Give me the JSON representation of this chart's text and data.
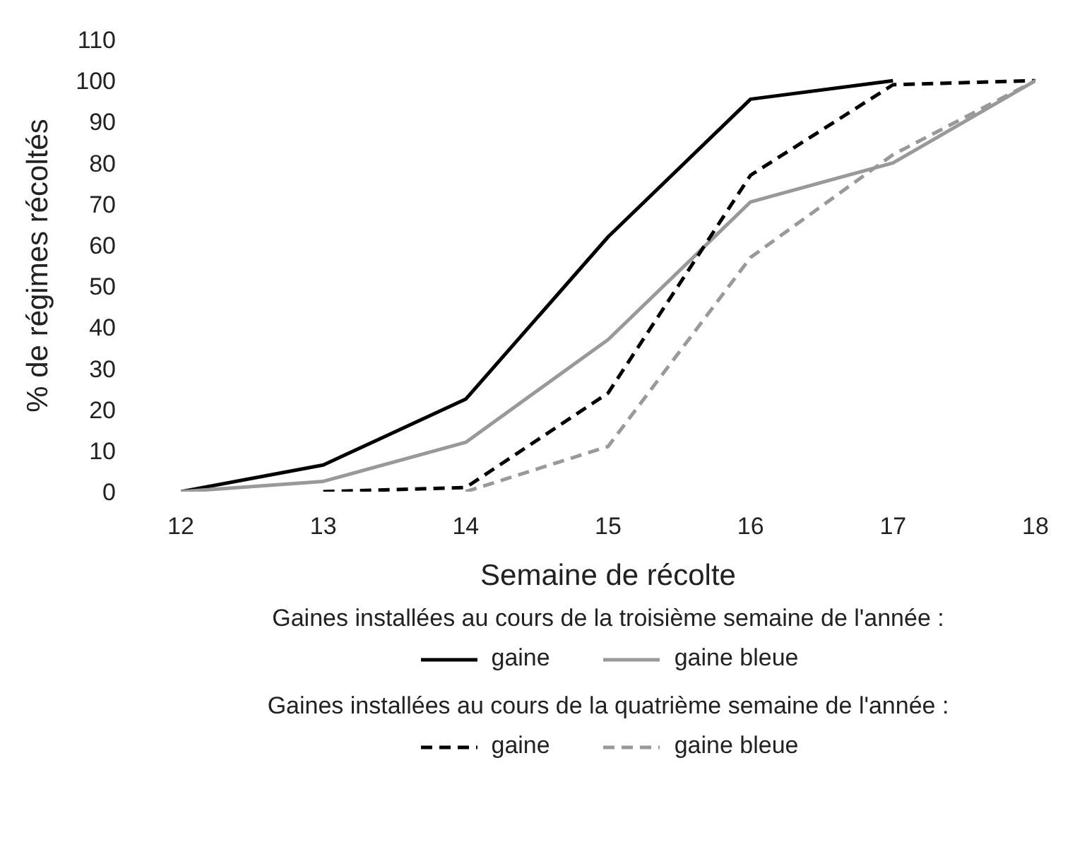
{
  "chart_data": {
    "type": "line",
    "xlabel": "Semaine de récolte",
    "ylabel": "% de régimes récoltés",
    "x": [
      12,
      13,
      14,
      15,
      16,
      17,
      18
    ],
    "xlim": [
      12,
      18
    ],
    "xticks": [
      12,
      13,
      14,
      15,
      16,
      17,
      18
    ],
    "ylim": [
      0,
      110
    ],
    "yticks": [
      0,
      10,
      20,
      30,
      40,
      50,
      60,
      70,
      80,
      90,
      100,
      110
    ],
    "grid": false,
    "legend": "bottom",
    "marker": "none",
    "annotations": [
      "Gaines installées au cours de la troisième semaine de l'année :",
      "Gaines installées au cours de la quatrième semaine de l'année :"
    ],
    "series": [
      {
        "name": "gaine",
        "color": "#000000",
        "line_style": "solid",
        "values": [
          0,
          6.5,
          22.5,
          62,
          95.5,
          100,
          null
        ]
      },
      {
        "name": "gaine bleue",
        "color": "#999999",
        "line_style": "solid",
        "values": [
          0,
          2.5,
          12,
          37,
          70.5,
          80,
          100
        ]
      },
      {
        "name": "gaine",
        "color": "#000000",
        "line_style": "dashed",
        "values": [
          null,
          0,
          1,
          24,
          77,
          99,
          100
        ]
      },
      {
        "name": "gaine bleue",
        "color": "#999999",
        "line_style": "dashed",
        "values": [
          null,
          null,
          0,
          11,
          57,
          82,
          100
        ]
      }
    ]
  }
}
